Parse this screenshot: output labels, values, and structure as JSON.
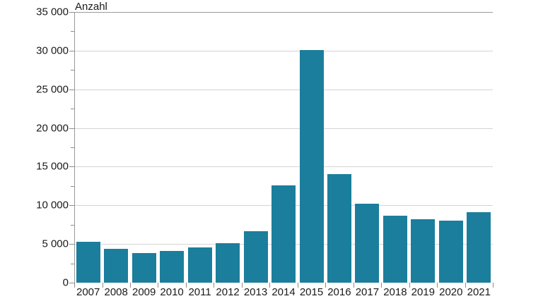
{
  "chart_data": {
    "type": "bar",
    "title": "",
    "ylabel": "Anzahl",
    "xlabel": "",
    "categories": [
      "2007",
      "2008",
      "2009",
      "2010",
      "2011",
      "2012",
      "2013",
      "2014",
      "2015",
      "2016",
      "2017",
      "2018",
      "2019",
      "2020",
      "2021"
    ],
    "values": [
      5300,
      4400,
      3800,
      4100,
      4600,
      5100,
      6650,
      12600,
      30100,
      14000,
      10200,
      8650,
      8200,
      8000,
      9100
    ],
    "ylim": [
      0,
      35000
    ],
    "ytick_interval": 5000,
    "ytick_minor_interval": 2500,
    "ytick_labels": [
      "0",
      "5 000",
      "10 000",
      "15 000",
      "20 000",
      "25 000",
      "30 000",
      "35 000"
    ],
    "grid": true,
    "legend": "none",
    "bar_color": "#1b7e9c"
  },
  "colors": {
    "bar": "#1b7e9c",
    "gridline": "#d4d4d4",
    "top_gridline": "#9b9b9b",
    "axis": "#999999",
    "tick": "#8c8c8c",
    "text": "#1a1a1a",
    "background": "#ffffff"
  }
}
